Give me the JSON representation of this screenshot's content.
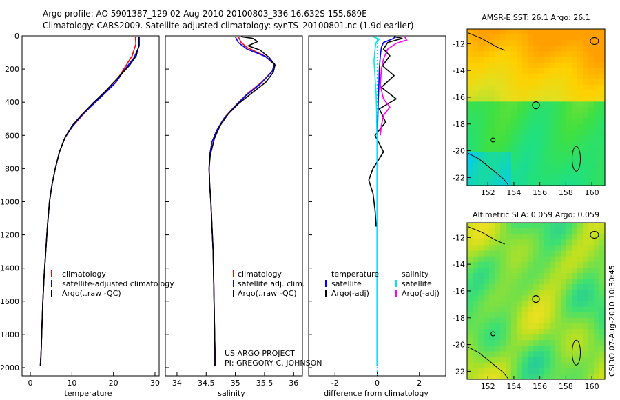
{
  "header": {
    "line1": "Argo profile: AO 5901387_129 02-Aug-2010 20100803_336 16.632S 155.689E",
    "line2": "Climatology: CARS2009. Satellite-adjusted climatology: synTS_20100801.nc (1.9d earlier)"
  },
  "credits": {
    "project": "US ARGO PROJECT",
    "pi": "PI: GREGORY C. JOHNSON",
    "stamp": "CSIRO 07-Aug-2010 10:30:45"
  },
  "colors": {
    "climatology": "#ff0000",
    "satellite": "#0000ff",
    "argo": "#000000",
    "sal_sat": "#00e5ee",
    "sal_argo": "#ff00ff"
  },
  "chart_data": [
    {
      "id": "temperature",
      "type": "line",
      "xlabel": "temperature",
      "ylabel": "",
      "xlim": [
        -2,
        31
      ],
      "ylim": [
        2050,
        0
      ],
      "xticks": [
        0,
        10,
        20,
        30
      ],
      "yticks": [
        0,
        200,
        400,
        600,
        800,
        1000,
        1200,
        1400,
        1600,
        1800,
        2000
      ],
      "legend": {
        "position": "lower-right",
        "entries": [
          "climatology",
          "satellite-adjusted climatology",
          "Argo(..raw -QC)"
        ]
      },
      "series": [
        {
          "name": "climatology",
          "color": "#ff0000",
          "points": [
            [
              25.3,
              5
            ],
            [
              25.4,
              50
            ],
            [
              24.5,
              120
            ],
            [
              22.5,
              200
            ],
            [
              20.5,
              280
            ],
            [
              18.5,
              330
            ],
            [
              15.5,
              400
            ],
            [
              12.5,
              480
            ],
            [
              10,
              550
            ],
            [
              8.2,
              620
            ],
            [
              7,
              700
            ],
            [
              6,
              800
            ],
            [
              5.2,
              900
            ],
            [
              4.6,
              1000
            ],
            [
              4.1,
              1150
            ],
            [
              3.7,
              1300
            ],
            [
              3.3,
              1450
            ],
            [
              3,
              1600
            ],
            [
              2.8,
              1750
            ],
            [
              2.6,
              1900
            ],
            [
              2.5,
              1990
            ]
          ]
        },
        {
          "name": "satellite-adjusted climatology",
          "color": "#0000ff",
          "points": [
            [
              26.2,
              5
            ],
            [
              26.2,
              60
            ],
            [
              25,
              130
            ],
            [
              22.8,
              200
            ],
            [
              20.6,
              280
            ],
            [
              18.6,
              330
            ],
            [
              15.7,
              400
            ],
            [
              12.7,
              470
            ],
            [
              10.3,
              540
            ],
            [
              8.4,
              610
            ],
            [
              7,
              700
            ],
            [
              6,
              800
            ],
            [
              5.2,
              900
            ],
            [
              4.6,
              1000
            ],
            [
              4.1,
              1150
            ],
            [
              3.7,
              1300
            ],
            [
              3.3,
              1450
            ],
            [
              3,
              1600
            ],
            [
              2.8,
              1750
            ],
            [
              2.6,
              1900
            ],
            [
              2.4,
              1990
            ]
          ]
        },
        {
          "name": "Argo(..raw -QC)",
          "color": "#000000",
          "points": [
            [
              26.1,
              5
            ],
            [
              26.1,
              60
            ],
            [
              25.5,
              120
            ],
            [
              23.8,
              180
            ],
            [
              21.2,
              250
            ],
            [
              18.2,
              330
            ],
            [
              15.3,
              400
            ],
            [
              12.2,
              480
            ],
            [
              10.1,
              540
            ],
            [
              8.4,
              610
            ],
            [
              7,
              700
            ],
            [
              6,
              800
            ],
            [
              5.2,
              900
            ],
            [
              4.6,
              1000
            ],
            [
              4.1,
              1150
            ],
            [
              3.7,
              1300
            ],
            [
              3.3,
              1450
            ],
            [
              3,
              1600
            ],
            [
              2.8,
              1750
            ],
            [
              2.6,
              1900
            ],
            [
              2.4,
              1990
            ]
          ]
        }
      ]
    },
    {
      "id": "salinity",
      "type": "line",
      "xlabel": "salinity",
      "ylabel": "",
      "xlim": [
        33.8,
        36.15
      ],
      "ylim": [
        2050,
        0
      ],
      "xticks": [
        34,
        34.5,
        35,
        35.5,
        36
      ],
      "legend": {
        "position": "lower-right",
        "entries": [
          "climatology",
          "satellite adj. clim.",
          "Argo(..raw -QC)"
        ]
      },
      "series": [
        {
          "name": "climatology",
          "color": "#ff0000",
          "points": [
            [
              35.05,
              5
            ],
            [
              35.1,
              40
            ],
            [
              35.2,
              70
            ],
            [
              35.5,
              120
            ],
            [
              35.66,
              170
            ],
            [
              35.64,
              210
            ],
            [
              35.45,
              280
            ],
            [
              35.2,
              350
            ],
            [
              35,
              420
            ],
            [
              34.82,
              490
            ],
            [
              34.7,
              560
            ],
            [
              34.6,
              640
            ],
            [
              34.56,
              720
            ],
            [
              34.55,
              800
            ],
            [
              34.56,
              900
            ],
            [
              34.58,
              1000
            ],
            [
              34.6,
              1150
            ],
            [
              34.62,
              1300
            ],
            [
              34.63,
              1500
            ],
            [
              34.64,
              1700
            ],
            [
              34.65,
              1900
            ],
            [
              34.65,
              1990
            ]
          ]
        },
        {
          "name": "satellite adj. clim.",
          "color": "#0000ff",
          "points": [
            [
              35.0,
              5
            ],
            [
              35.05,
              40
            ],
            [
              35.2,
              80
            ],
            [
              35.52,
              125
            ],
            [
              35.67,
              170
            ],
            [
              35.63,
              215
            ],
            [
              35.43,
              290
            ],
            [
              35.18,
              360
            ],
            [
              34.98,
              430
            ],
            [
              34.8,
              500
            ],
            [
              34.68,
              570
            ],
            [
              34.6,
              640
            ],
            [
              34.56,
              720
            ],
            [
              34.55,
              800
            ],
            [
              34.56,
              900
            ],
            [
              34.58,
              1000
            ],
            [
              34.6,
              1150
            ],
            [
              34.62,
              1300
            ],
            [
              34.63,
              1500
            ],
            [
              34.64,
              1700
            ],
            [
              34.65,
              1900
            ],
            [
              34.65,
              1990
            ]
          ]
        },
        {
          "name": "Argo(..raw -QC)",
          "color": "#000000",
          "points": [
            [
              35.1,
              5
            ],
            [
              35.3,
              15
            ],
            [
              35.38,
              35
            ],
            [
              35.22,
              60
            ],
            [
              35.42,
              85
            ],
            [
              35.58,
              130
            ],
            [
              35.68,
              175
            ],
            [
              35.65,
              220
            ],
            [
              35.52,
              280
            ],
            [
              35.3,
              340
            ],
            [
              35.05,
              410
            ],
            [
              34.88,
              470
            ],
            [
              34.74,
              540
            ],
            [
              34.64,
              620
            ],
            [
              34.57,
              720
            ],
            [
              34.55,
              800
            ],
            [
              34.56,
              900
            ],
            [
              34.58,
              1000
            ],
            [
              34.6,
              1150
            ],
            [
              34.62,
              1300
            ],
            [
              34.63,
              1500
            ],
            [
              34.64,
              1700
            ],
            [
              34.65,
              1900
            ],
            [
              34.65,
              1990
            ]
          ]
        }
      ]
    },
    {
      "id": "difference",
      "type": "line",
      "xlabel": "difference from climatology",
      "ylabel": "",
      "xlim": [
        -3.25,
        3.25
      ],
      "ylim": [
        2050,
        0
      ],
      "xticks": [
        -2,
        0,
        2
      ],
      "legend": {
        "position": "lower-right",
        "temperature_header": "temperature",
        "salinity_header": "salinity",
        "entries": [
          "satellite",
          "Argo(-adj)",
          "satellite",
          "Argo(-adj)"
        ]
      },
      "series": [
        {
          "name": "temperature satellite",
          "color": "#0000ff",
          "points": [
            [
              0.9,
              5
            ],
            [
              0.7,
              20
            ],
            [
              0.3,
              40
            ],
            [
              0.2,
              70
            ],
            [
              0.15,
              120
            ],
            [
              0.1,
              200
            ],
            [
              0.08,
              300
            ],
            [
              0.05,
              400
            ],
            [
              0.03,
              500
            ],
            [
              0,
              600
            ],
            [
              0,
              800
            ],
            [
              0,
              1000
            ],
            [
              0,
              1990
            ]
          ]
        },
        {
          "name": "temperature Argo(-adj)",
          "color": "#000000",
          "points": [
            [
              0.8,
              5
            ],
            [
              1.2,
              15
            ],
            [
              0.5,
              40
            ],
            [
              0.3,
              80
            ],
            [
              0.6,
              120
            ],
            [
              0.25,
              180
            ],
            [
              0.8,
              240
            ],
            [
              0.2,
              310
            ],
            [
              0.9,
              380
            ],
            [
              0.1,
              440
            ],
            [
              0.4,
              520
            ],
            [
              -0.1,
              600
            ],
            [
              0.3,
              700
            ],
            [
              -0.2,
              800
            ],
            [
              -0.4,
              870
            ],
            [
              -0.2,
              950
            ],
            [
              -0.1,
              1050
            ],
            [
              -0.05,
              1150
            ]
          ]
        },
        {
          "name": "salinity satellite",
          "color": "#00e5ee",
          "points": [
            [
              -0.2,
              5
            ],
            [
              0.1,
              20
            ],
            [
              -0.05,
              40
            ],
            [
              -0.1,
              80
            ],
            [
              -0.15,
              150
            ],
            [
              -0.1,
              250
            ],
            [
              -0.05,
              350
            ],
            [
              -0.03,
              450
            ],
            [
              -0.02,
              550
            ],
            [
              0,
              650
            ],
            [
              0,
              800
            ],
            [
              0,
              1000
            ],
            [
              0,
              1990
            ]
          ]
        },
        {
          "name": "salinity Argo(-adj)",
          "color": "#ff00ff",
          "points": [
            [
              1.3,
              5
            ],
            [
              1.4,
              25
            ],
            [
              0.9,
              45
            ],
            [
              0.5,
              80
            ],
            [
              0.3,
              140
            ],
            [
              0.2,
              200
            ],
            [
              0.15,
              300
            ],
            [
              0.3,
              380
            ],
            [
              0.6,
              430
            ],
            [
              0.3,
              480
            ],
            [
              0.2,
              540
            ],
            [
              0.15,
              600
            ]
          ]
        }
      ]
    },
    {
      "id": "sst_map",
      "type": "heatmap",
      "title": "AMSR-E SST: 26.1  Argo: 26.1",
      "xticks": [
        152,
        154,
        156,
        158,
        160
      ],
      "yticks": [
        -12,
        -14,
        -16,
        -18,
        -20,
        -22
      ],
      "xlim": [
        150.4,
        161
      ],
      "ylim": [
        -22.6,
        -10.9
      ],
      "marker": {
        "lon": 155.7,
        "lat": -16.6
      },
      "palette": [
        "#00c8ff",
        "#20e080",
        "#40e040",
        "#a0e030",
        "#e0e020",
        "#ffd000",
        "#ffa000"
      ]
    },
    {
      "id": "sla_map",
      "type": "heatmap",
      "title": "Altimetric SLA: 0.059  Argo: 0.059",
      "xticks": [
        152,
        154,
        156,
        158,
        160
      ],
      "yticks": [
        -12,
        -14,
        -16,
        -18,
        -20,
        -22
      ],
      "xlim": [
        150.4,
        161
      ],
      "ylim": [
        -22.6,
        -10.9
      ],
      "marker": {
        "lon": 155.7,
        "lat": -16.6
      },
      "palette": [
        "#20c8a0",
        "#40e070",
        "#80e040",
        "#c0e020",
        "#e8e020"
      ]
    }
  ]
}
